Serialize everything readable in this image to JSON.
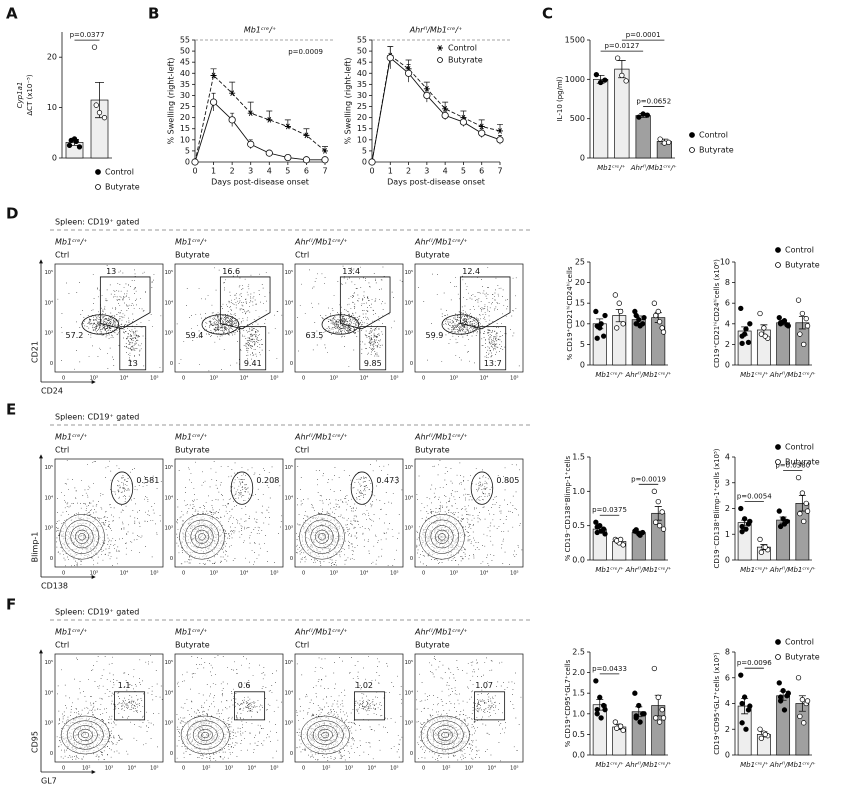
{
  "letters": [
    "A",
    "B",
    "C",
    "D",
    "E",
    "F"
  ],
  "chart_data": [
    {
      "type": "bar",
      "ylabel": [
        "Cyp1a1",
        "ΔCT (x10⁻⁵)"
      ],
      "categories": [
        null
      ],
      "group_colors": [
        "#eeeeee"
      ],
      "ylim": [
        0,
        25
      ],
      "yticks": [
        0,
        10,
        20
      ],
      "legend": true,
      "series": [
        {
          "name": "Control",
          "marker": "filled",
          "values": [
            3.1
          ],
          "errors": [
            0.6
          ],
          "points": [
            [
              2.5,
              3.8,
              2.2,
              3.5,
              3.3
            ]
          ]
        },
        {
          "name": "Butyrate",
          "marker": "open",
          "values": [
            11.5
          ],
          "errors": [
            3.5
          ],
          "points": [
            [
              22,
              9,
              8,
              10.5
            ]
          ]
        }
      ],
      "comparisons": [
        {
          "text": "p=0.0377",
          "bars": [
            0,
            1
          ]
        }
      ]
    },
    {
      "type": "line",
      "title": "Mb1ᶜʳᵉ/⁺",
      "xlabel": "Days post-disease onset",
      "ylabel": "% Swelling (right-left)",
      "x": [
        0,
        1,
        2,
        3,
        4,
        5,
        6,
        7
      ],
      "xlim": [
        0,
        7
      ],
      "xticks": [
        0,
        1,
        2,
        3,
        4,
        5,
        6,
        7
      ],
      "ylim": [
        0,
        55
      ],
      "yticks": [
        0,
        5,
        10,
        15,
        20,
        25,
        30,
        35,
        40,
        45,
        50,
        55
      ],
      "annotation": "p=0.0009",
      "series": [
        {
          "marker": "star",
          "line_style": "dashed",
          "values": [
            0,
            39,
            31,
            22,
            19,
            16,
            12,
            5
          ],
          "errors": [
            0,
            3,
            5,
            5,
            4,
            3,
            3,
            2
          ]
        },
        {
          "marker": "circle",
          "line_style": "solid",
          "values": [
            0,
            27,
            19,
            8,
            4,
            2,
            1,
            1
          ],
          "errors": [
            0,
            4,
            3,
            2,
            1,
            1,
            1,
            1
          ]
        }
      ]
    },
    {
      "type": "line",
      "title": "Ahrᶠˡ/Mb1ᶜʳᵉ/⁺",
      "xlabel": "Days post-disease onset",
      "ylabel": "% Swelling (right-left)",
      "x": [
        0,
        1,
        2,
        3,
        4,
        5,
        6,
        7
      ],
      "xlim": [
        0,
        7
      ],
      "xticks": [
        0,
        1,
        2,
        3,
        4,
        5,
        6,
        7
      ],
      "ylim": [
        0,
        55
      ],
      "yticks": [
        0,
        5,
        10,
        15,
        20,
        25,
        30,
        35,
        40,
        45,
        50,
        55
      ],
      "series": [
        {
          "name": "Control",
          "marker": "star",
          "line_style": "dashed",
          "values": [
            0,
            48,
            42,
            33,
            24,
            20,
            16,
            14
          ],
          "errors": [
            0,
            4,
            4,
            3,
            3,
            3,
            3,
            3
          ]
        },
        {
          "name": "Butyrate",
          "marker": "circle",
          "line_style": "solid",
          "values": [
            0,
            47,
            40,
            30,
            21,
            18,
            13,
            10
          ],
          "errors": [
            0,
            5,
            4,
            3,
            2,
            2,
            2,
            2
          ]
        }
      ]
    },
    {
      "type": "bar",
      "ylabel": "IL-10 (pg/ml)",
      "categories": [
        "Mb1ᶜʳᵉ/⁺",
        "Ahrᶠˡ/Mb1ᶜʳᵉ/⁺"
      ],
      "group_colors": [
        "#eeeeee",
        "#a0a0a0"
      ],
      "ylim": [
        0,
        1500
      ],
      "yticks": [
        0,
        500,
        1000,
        1500
      ],
      "legend": true,
      "series": [
        {
          "name": "Control",
          "marker": "filled",
          "values": [
            1000,
            540
          ],
          "errors": [
            50,
            25
          ],
          "points": [
            [
              1060,
              960,
              990
            ],
            [
              520,
              560,
              545
            ]
          ]
        },
        {
          "name": "Butyrate",
          "marker": "open",
          "values": [
            1130,
            210
          ],
          "errors": [
            110,
            30
          ],
          "points": [
            [
              1270,
              1050,
              980
            ],
            [
              240,
              190,
              200
            ]
          ]
        }
      ],
      "comparisons": [
        {
          "text": "p=0.0652",
          "bars": [
            2,
            3
          ]
        },
        {
          "text": "p=0.0127",
          "bars": [
            0,
            2
          ]
        },
        {
          "text": "p=0.0001",
          "bars": [
            1,
            3
          ]
        }
      ]
    },
    {
      "type": "bar",
      "ylabel": "% CD19⁺CD21ʰⁱCD24ʰⁱcells",
      "categories": [
        "Mb1ᶜʳᵉ/⁺",
        "Ahrᶠˡ/Mb1ᶜʳᵉ/⁺"
      ],
      "group_colors": [
        "#eeeeee",
        "#a0a0a0"
      ],
      "ylim": [
        0,
        25
      ],
      "yticks": [
        0,
        5,
        10,
        15,
        20,
        25
      ],
      "series": [
        {
          "marker": "filled",
          "values": [
            10,
            11
          ],
          "errors": [
            1.2,
            0.9
          ],
          "points": [
            [
              13,
              9,
              7,
              6.5,
              10,
              12,
              9.5
            ],
            [
              13,
              11,
              10,
              12,
              9.5,
              11.5,
              10
            ]
          ]
        },
        {
          "marker": "open",
          "values": [
            12,
            11.5
          ],
          "errors": [
            1.5,
            1.2
          ],
          "points": [
            [
              17,
              15,
              10,
              9,
              13
            ],
            [
              15,
              13,
              9,
              12,
              10.5,
              8
            ]
          ]
        }
      ]
    },
    {
      "type": "bar",
      "ylabel": "CD19⁺CD21ʰⁱCD24ʰⁱcells (x10⁶)",
      "categories": [
        "Mb1ᶜʳᵉ/⁺",
        "Ahrᶠˡ/Mb1ᶜʳᵉ/⁺"
      ],
      "group_colors": [
        "#eeeeee",
        "#a0a0a0"
      ],
      "ylim": [
        0,
        10
      ],
      "yticks": [
        0,
        2,
        4,
        6,
        8,
        10
      ],
      "legend": true,
      "series": [
        {
          "name": "Control",
          "marker": "filled",
          "values": [
            3.3,
            4.1
          ],
          "errors": [
            0.4,
            0.2
          ],
          "points": [
            [
              5.5,
              3.0,
              2.2,
              2.8,
              3.5,
              4.0,
              2.1
            ],
            [
              4.6,
              4.2,
              3.9,
              4.0,
              4.3,
              3.8,
              4.1
            ]
          ]
        },
        {
          "name": "Butyrate",
          "marker": "open",
          "values": [
            3.4,
            4.1
          ],
          "errors": [
            0.5,
            0.6
          ],
          "points": [
            [
              5.0,
              3.6,
              2.6,
              3.0,
              2.8
            ],
            [
              6.3,
              5.0,
              4.5,
              3.0,
              2.0,
              3.8
            ]
          ]
        }
      ]
    },
    {
      "type": "bar",
      "ylabel": "% CD19⁻CD138⁺Blimp-1⁺cells",
      "categories": [
        "Mb1ᶜʳᵉ/⁺",
        "Ahrᶠˡ/Mb1ᶜʳᵉ/⁺"
      ],
      "group_colors": [
        "#eeeeee",
        "#a0a0a0"
      ],
      "ylim": [
        0,
        1.5
      ],
      "yticks": [
        {
          "value": 0,
          "label": "0.0"
        },
        0.5,
        {
          "value": 1,
          "label": "1.0"
        },
        1.5
      ],
      "series": [
        {
          "marker": "filled",
          "values": [
            0.45,
            0.4
          ],
          "errors": [
            0.03,
            0.02
          ],
          "points": [
            [
              0.55,
              0.5,
              0.45,
              0.4,
              0.42,
              0.38,
              0.48
            ],
            [
              0.42,
              0.38,
              0.4,
              0.44,
              0.36
            ]
          ]
        },
        {
          "marker": "open",
          "values": [
            0.27,
            0.68
          ],
          "errors": [
            0.03,
            0.1
          ],
          "points": [
            [
              0.3,
              0.25,
              0.22,
              0.28,
              0.3
            ],
            [
              1.0,
              0.85,
              0.7,
              0.55,
              0.5,
              0.45
            ]
          ]
        }
      ],
      "comparisons": [
        {
          "text": "p=0.0375",
          "bars": [
            0,
            1
          ]
        },
        {
          "text": "p=0.0019",
          "bars": [
            2,
            3
          ]
        }
      ]
    },
    {
      "type": "bar",
      "ylabel": "CD19⁻CD138⁺Blimp-1⁺cells (x10⁵)",
      "categories": [
        "Mb1ᶜʳᵉ/⁺",
        "Ahrᶠˡ/Mb1ᶜʳᵉ/⁺"
      ],
      "group_colors": [
        "#eeeeee",
        "#a0a0a0"
      ],
      "ylim": [
        0,
        4
      ],
      "yticks": [
        0,
        1,
        2,
        3,
        4
      ],
      "legend": true,
      "series": [
        {
          "name": "Control",
          "marker": "filled",
          "values": [
            1.45,
            1.55
          ],
          "errors": [
            0.1,
            0.12
          ],
          "points": [
            [
              2.0,
              1.6,
              1.4,
              1.3,
              1.2,
              1.5,
              1.1
            ],
            [
              1.9,
              1.6,
              1.5,
              1.3,
              1.4
            ]
          ]
        },
        {
          "name": "Butyrate",
          "marker": "open",
          "values": [
            0.5,
            2.2
          ],
          "errors": [
            0.1,
            0.3
          ],
          "points": [
            [
              0.8,
              0.5,
              0.4,
              0.3,
              0.5
            ],
            [
              3.2,
              2.6,
              2.2,
              1.8,
              1.5,
              1.9
            ]
          ]
        }
      ],
      "comparisons": [
        {
          "text": "p=0.0054",
          "bars": [
            0,
            1
          ]
        },
        {
          "text": "p=0.0380",
          "bars": [
            2,
            3
          ]
        }
      ]
    },
    {
      "type": "bar",
      "ylabel": "% CD19⁺CD95⁺GL7⁺cells",
      "categories": [
        "Mb1ᶜʳᵉ/⁺",
        "Ahrᶠˡ/Mb1ᶜʳᵉ/⁺"
      ],
      "group_colors": [
        "#eeeeee",
        "#a0a0a0"
      ],
      "ylim": [
        0,
        2.5
      ],
      "yticks": [
        {
          "value": 0,
          "label": "0.0"
        },
        0.5,
        {
          "value": 1,
          "label": "1.0"
        },
        1.5,
        {
          "value": 2,
          "label": "2.0"
        },
        2.5
      ],
      "series": [
        {
          "marker": "filled",
          "values": [
            1.22,
            1.05
          ],
          "errors": [
            0.13,
            0.12
          ],
          "points": [
            [
              1.8,
              1.4,
              1.2,
              1.0,
              0.9,
              1.1,
              1.1
            ],
            [
              1.5,
              1.2,
              1.0,
              0.9,
              0.8,
              1.0,
              0.95
            ]
          ]
        },
        {
          "marker": "open",
          "values": [
            0.68,
            1.2
          ],
          "errors": [
            0.06,
            0.25
          ],
          "points": [
            [
              0.8,
              0.7,
              0.6,
              0.65,
              0.7
            ],
            [
              2.1,
              1.4,
              1.1,
              0.9,
              0.8,
              0.9
            ]
          ]
        }
      ],
      "comparisons": [
        {
          "text": "p=0.0433",
          "bars": [
            0,
            1
          ]
        }
      ]
    },
    {
      "type": "bar",
      "ylabel": "CD19⁺CD95⁺GL7⁺cells (x10⁵)",
      "categories": [
        "Mb1ᶜʳᵉ/⁺",
        "Ahrᶠˡ/Mb1ᶜʳᵉ/⁺"
      ],
      "group_colors": [
        "#eeeeee",
        "#a0a0a0"
      ],
      "ylim": [
        0,
        8
      ],
      "yticks": [
        0,
        2,
        4,
        6,
        8
      ],
      "legend": true,
      "series": [
        {
          "name": "Control",
          "marker": "filled",
          "values": [
            3.8,
            4.6
          ],
          "errors": [
            0.6,
            0.35
          ],
          "points": [
            [
              6.2,
              4.5,
              3.5,
              2.5,
              2.0,
              3.8,
              4.0
            ],
            [
              5.6,
              5.0,
              4.6,
              4.2,
              3.5,
              4.8,
              4.5
            ]
          ]
        },
        {
          "name": "Butyrate",
          "marker": "open",
          "values": [
            1.6,
            4.0
          ],
          "errors": [
            0.2,
            0.6
          ],
          "points": [
            [
              2.0,
              1.7,
              1.5,
              1.3,
              1.6
            ],
            [
              6.0,
              4.3,
              4.0,
              3.0,
              2.5,
              4.2
            ]
          ]
        }
      ],
      "comparisons": [
        {
          "text": "p=0.0096",
          "bars": [
            0,
            1
          ]
        }
      ]
    }
  ],
  "flow": [
    {
      "header": "Spleen: CD19⁺ gated",
      "xlabel": "CD24",
      "ylabel": "CD21",
      "xticks": [
        "0",
        "10³",
        "10⁴",
        "10⁵"
      ],
      "yticks": [
        "0",
        "10³",
        "10⁴",
        "10⁵"
      ],
      "plots": [
        {
          "genotype": "Mb1ᶜʳᵉ/⁺",
          "condition": "Ctrl",
          "gates": [
            13,
            57.2,
            13
          ]
        },
        {
          "genotype": "Mb1ᶜʳᵉ/⁺",
          "condition": "Butyrate",
          "gates": [
            16.6,
            59.4,
            9.41
          ]
        },
        {
          "genotype": "Ahrᶠˡ/Mb1ᶜʳᵉ/⁺",
          "condition": "Ctrl",
          "gates": [
            13.4,
            63.5,
            9.85
          ]
        },
        {
          "genotype": "Ahrᶠˡ/Mb1ᶜʳᵉ/⁺",
          "condition": "Butyrate",
          "gates": [
            12.4,
            59.9,
            13.7
          ]
        }
      ]
    },
    {
      "header": "Spleen: CD19⁺ gated",
      "xlabel": "CD138",
      "ylabel": "Blimp-1",
      "xticks": [
        "0",
        "10³",
        "10⁴",
        "10⁵"
      ],
      "yticks": [
        "0",
        "10³",
        "10⁴",
        "10⁵"
      ],
      "plots": [
        {
          "genotype": "Mb1ᶜʳᵉ/⁺",
          "condition": "Ctrl",
          "gates": [
            0.581
          ]
        },
        {
          "genotype": "Mb1ᶜʳᵉ/⁺",
          "condition": "Butyrate",
          "gates": [
            0.208
          ]
        },
        {
          "genotype": "Ahrᶠˡ/Mb1ᶜʳᵉ/⁺",
          "condition": "Ctrl",
          "gates": [
            0.473
          ]
        },
        {
          "genotype": "Ahrᶠˡ/Mb1ᶜʳᵉ/⁺",
          "condition": "Butyrate",
          "gates": [
            0.805
          ]
        }
      ]
    },
    {
      "header": "Spleen: CD19⁺ gated",
      "xlabel": "GL7",
      "ylabel": "CD95",
      "xticks": [
        "0",
        "10²",
        "10³",
        "10⁴",
        "10⁵"
      ],
      "yticks": [
        "0",
        "10³",
        "10⁴",
        "10⁵"
      ],
      "plots": [
        {
          "genotype": "Mb1ᶜʳᵉ/⁺",
          "condition": "Ctrl",
          "gates": [
            1.1
          ]
        },
        {
          "genotype": "Mb1ᶜʳᵉ/⁺",
          "condition": "Butyrate",
          "gates": [
            0.6
          ]
        },
        {
          "genotype": "Ahrᶠˡ/Mb1ᶜʳᵉ/⁺",
          "condition": "Ctrl",
          "gates": [
            1.02
          ]
        },
        {
          "genotype": "Ahrᶠˡ/Mb1ᶜʳᵉ/⁺",
          "condition": "Butyrate",
          "gates": [
            1.07
          ]
        }
      ]
    }
  ]
}
